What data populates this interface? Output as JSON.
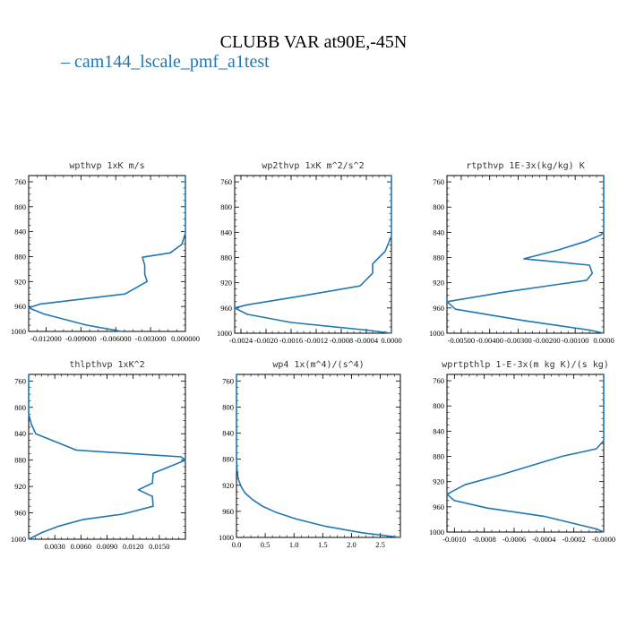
{
  "title": "CLUBB VAR at90E,-45N",
  "legend": {
    "marker": "–",
    "label": "cam144_lscale_pmf_a1test"
  },
  "colors": {
    "series": "#1f77b4",
    "axis": "#000000"
  },
  "chart_data": [
    {
      "type": "line",
      "title": "wpthvp  1xK m/s",
      "series_name": "cam144_lscale_pmf_a1test",
      "xlim": [
        -0.0135,
        0.0
      ],
      "ylim": [
        1000,
        750
      ],
      "y_inverted": true,
      "xticks": [
        -0.012,
        -0.009,
        -0.006,
        -0.003,
        0.0
      ],
      "xtick_labels": [
        "-0.012000",
        "-0.009000",
        "-0.006000",
        "-0.003000",
        "0.000000"
      ],
      "yticks": [
        760,
        800,
        840,
        880,
        920,
        960,
        1000
      ],
      "ytick_labels": [
        "760",
        "800",
        "840",
        "880",
        "920",
        "960",
        "1000"
      ],
      "x": [
        0.0,
        0.0,
        0.0,
        0.0,
        -0.0003,
        -0.0013,
        -0.0037,
        -0.0035,
        -0.0035,
        -0.0033,
        -0.0052,
        -0.0125,
        -0.0135,
        -0.0122,
        -0.0085,
        -0.0055
      ],
      "y": [
        750,
        800,
        835,
        842,
        860,
        874,
        881,
        894,
        908,
        920,
        940,
        956,
        962,
        972,
        990,
        1000
      ]
    },
    {
      "type": "line",
      "title": "wp2thvp  1xK m^2/s^2",
      "series_name": "cam144_lscale_pmf_a1test",
      "xlim": [
        -0.0025,
        0.0
      ],
      "ylim": [
        1000,
        750
      ],
      "y_inverted": true,
      "xticks": [
        -0.0024,
        -0.002,
        -0.0016,
        -0.0012,
        -0.0008,
        -0.0004,
        0.0
      ],
      "xtick_labels": [
        "-0.0024",
        "-0.0020",
        "-0.0016",
        "-0.0012",
        "-0.0008",
        "-0.0004",
        "0.0000"
      ],
      "yticks": [
        760,
        800,
        840,
        880,
        920,
        960,
        1000
      ],
      "ytick_labels": [
        "760",
        "800",
        "840",
        "880",
        "920",
        "960",
        "1000"
      ],
      "x": [
        0.0,
        0.0,
        0.0,
        0.0,
        -0.0001,
        -0.0003,
        -0.0003,
        -0.0005,
        -0.0015,
        -0.0023,
        -0.0025,
        -0.0023,
        -0.0016,
        -0.0004,
        0.0
      ],
      "y": [
        750,
        800,
        840,
        846,
        870,
        890,
        905,
        925,
        942,
        955,
        960,
        970,
        983,
        995,
        1000
      ]
    },
    {
      "type": "line",
      "title": "rtpthvp  1E-3x(kg/kg) K",
      "series_name": "cam144_lscale_pmf_a1test",
      "xlim": [
        -0.0055,
        0.0
      ],
      "ylim": [
        1000,
        750
      ],
      "y_inverted": true,
      "xticks": [
        -0.005,
        -0.004,
        -0.003,
        -0.002,
        -0.001,
        0.0
      ],
      "xtick_labels": [
        "-0.00500",
        "-0.00400",
        "-0.00300",
        "-0.00200",
        "-0.00100",
        "0.0000"
      ],
      "yticks": [
        760,
        800,
        840,
        880,
        920,
        960,
        1000
      ],
      "ytick_labels": [
        "760",
        "800",
        "840",
        "880",
        "920",
        "960",
        "1000"
      ],
      "x": [
        0.0,
        0.0,
        0.0,
        0.0,
        -0.0001,
        -0.0006,
        -0.0016,
        -0.0028,
        -0.0005,
        -0.0004,
        -0.0006,
        -0.0035,
        -0.0055,
        -0.0052,
        -0.0028,
        -0.0005,
        0.0
      ],
      "y": [
        750,
        800,
        830,
        840,
        844,
        854,
        868,
        882,
        892,
        905,
        916,
        935,
        950,
        962,
        980,
        995,
        1000
      ]
    },
    {
      "type": "line",
      "title": "thlpthvp  1xK^2",
      "series_name": "cam144_lscale_pmf_a1test",
      "xlim": [
        0.0,
        0.018
      ],
      "ylim": [
        1000,
        750
      ],
      "y_inverted": true,
      "xticks": [
        0.003,
        0.006,
        0.009,
        0.012,
        0.015
      ],
      "xtick_labels": [
        "0.0030",
        "0.0060",
        "0.0090",
        "0.0120",
        "0.0150"
      ],
      "yticks": [
        760,
        800,
        840,
        880,
        920,
        960,
        1000
      ],
      "ytick_labels": [
        "760",
        "800",
        "840",
        "880",
        "920",
        "960",
        "1000"
      ],
      "x": [
        0.0,
        0.0,
        0.0003,
        0.0008,
        0.0055,
        0.0175,
        0.018,
        0.0143,
        0.0142,
        0.0126,
        0.0142,
        0.0143,
        0.0108,
        0.0063,
        0.0035,
        0.0015,
        0.0
      ],
      "y": [
        750,
        810,
        825,
        840,
        865,
        875,
        880,
        900,
        915,
        925,
        935,
        950,
        962,
        970,
        980,
        990,
        1000
      ]
    },
    {
      "type": "line",
      "title": "wp4  1x(m^4)/(s^4)",
      "series_name": "cam144_lscale_pmf_a1test",
      "xlim": [
        0.0,
        2.85
      ],
      "ylim": [
        1000,
        750
      ],
      "y_inverted": true,
      "xticks": [
        0.0,
        0.5,
        1.0,
        1.5,
        2.0,
        2.5
      ],
      "xtick_labels": [
        "0.0",
        "0.5",
        "1.0",
        "1.5",
        "2.0",
        "2.5"
      ],
      "yticks": [
        760,
        800,
        840,
        880,
        920,
        960,
        1000
      ],
      "ytick_labels": [
        "760",
        "800",
        "840",
        "880",
        "920",
        "960",
        "1000"
      ],
      "x": [
        0.0,
        0.0,
        0.01,
        0.03,
        0.08,
        0.15,
        0.28,
        0.45,
        0.7,
        1.05,
        1.55,
        2.2,
        2.85
      ],
      "y": [
        750,
        880,
        895,
        910,
        922,
        932,
        942,
        952,
        962,
        972,
        983,
        993,
        1000
      ]
    },
    {
      "type": "line",
      "title": "wprtpthlp  1-E-3x(m kg K)/(s kg)",
      "series_name": "cam144_lscale_pmf_a1test",
      "xlim": [
        -0.00105,
        0.0
      ],
      "ylim": [
        1000,
        750
      ],
      "y_inverted": true,
      "xticks": [
        -0.001,
        -0.0008,
        -0.0006,
        -0.0004,
        -0.0002,
        0.0
      ],
      "xtick_labels": [
        "-0.0010",
        "-0.0008",
        "-0.0006",
        "-0.0004",
        "-0.0002",
        "-0.0000"
      ],
      "yticks": [
        760,
        800,
        840,
        880,
        920,
        960,
        1000
      ],
      "ytick_labels": [
        "760",
        "800",
        "840",
        "880",
        "920",
        "960",
        "1000"
      ],
      "x": [
        0.0,
        0.0,
        -5e-05,
        -0.00028,
        -0.0007,
        -0.00093,
        -0.00105,
        -0.001,
        -0.00078,
        -0.0004,
        -5e-05,
        0.0
      ],
      "y": [
        750,
        855,
        868,
        880,
        910,
        925,
        940,
        950,
        962,
        975,
        995,
        1000
      ]
    }
  ]
}
